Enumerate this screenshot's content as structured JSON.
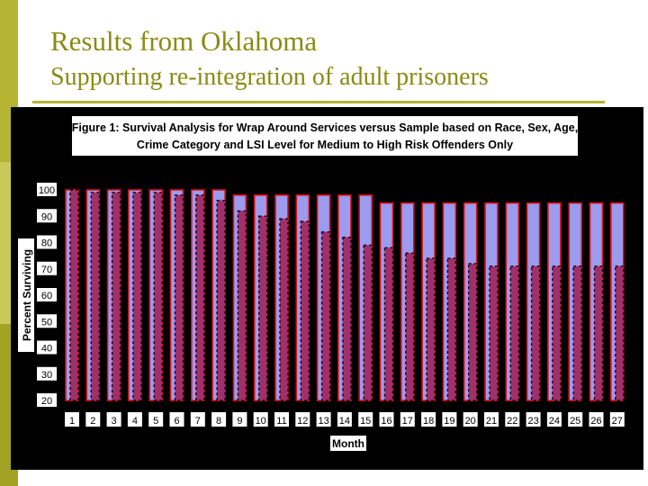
{
  "slide": {
    "title": "Results from Oklahoma",
    "subtitle": "Supporting re-integration of adult prisoners"
  },
  "colors": {
    "accent": "#b4b432",
    "title_text": "#8a8a14",
    "series_wrap_fill": "#9b9bf0",
    "series_wrap_stroke": "#e01010",
    "series_sample_fill": "#a0306a"
  },
  "chart_data": {
    "type": "bar",
    "title_line1": "Figure 1: Survival Analysis for Wrap Around Services versus Sample based on Race, Sex, Age,",
    "title_line2": "Crime Category and LSI Level for Medium to High Risk Offenders Only",
    "xlabel": "Month",
    "ylabel": "Percent Surviving",
    "ylim": [
      20,
      100
    ],
    "yticks": [
      "100",
      "90",
      "80",
      "70",
      "60",
      "50",
      "40",
      "30",
      "20"
    ],
    "categories": [
      "1",
      "2",
      "3",
      "4",
      "5",
      "6",
      "7",
      "8",
      "9",
      "10",
      "11",
      "12",
      "13",
      "14",
      "15",
      "16",
      "17",
      "18",
      "19",
      "20",
      "21",
      "22",
      "23",
      "24",
      "25",
      "26",
      "27"
    ],
    "grid": false,
    "legend": "none",
    "series": [
      {
        "values": [
          100,
          100,
          100,
          100,
          100,
          100,
          100,
          100,
          98,
          98,
          98,
          98,
          98,
          98,
          98,
          95,
          95,
          95,
          95,
          95,
          95,
          95,
          95,
          95,
          95,
          95,
          95
        ]
      },
      {
        "values": [
          100,
          99,
          99,
          99,
          99,
          98,
          98,
          96,
          92,
          90,
          89,
          88,
          84,
          82,
          79,
          78,
          76,
          74,
          74,
          72,
          71,
          71,
          71,
          71,
          71,
          71,
          71
        ]
      }
    ]
  }
}
